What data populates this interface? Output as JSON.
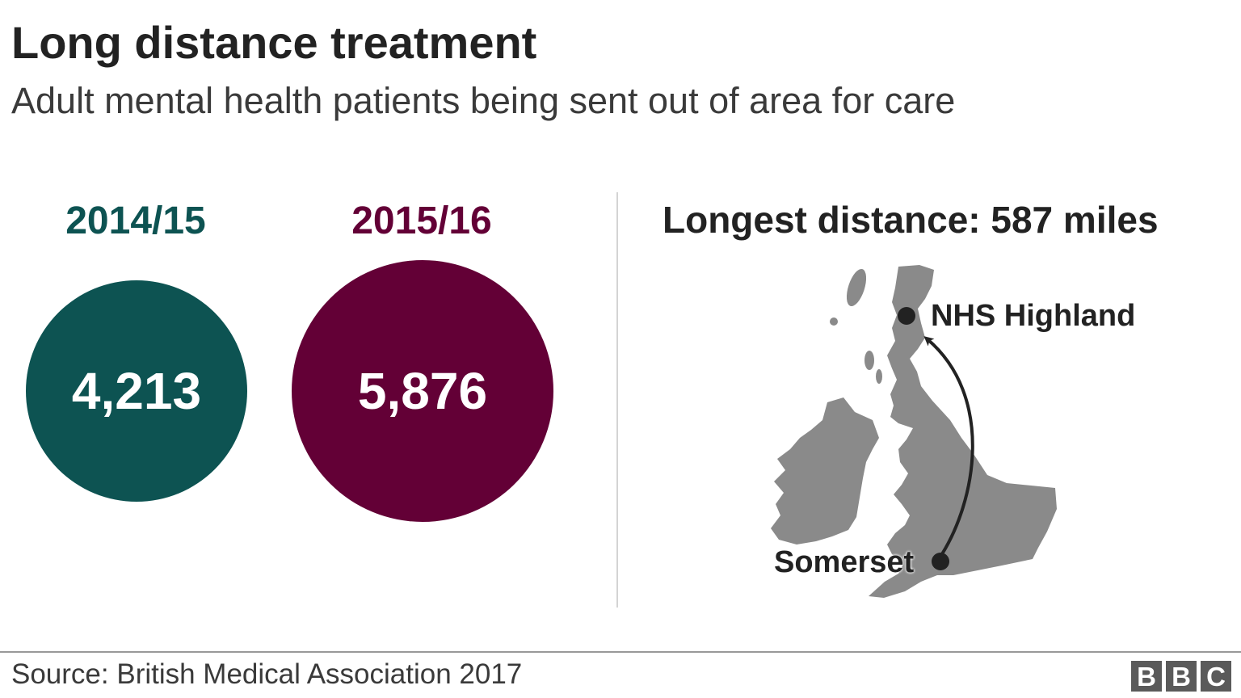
{
  "header": {
    "title": "Long distance treatment",
    "subtitle": "Adult mental health patients being sent out of area for care"
  },
  "chart_data": [
    {
      "type": "bubble",
      "categories": [
        "2014/15",
        "2015/16"
      ],
      "values": [
        4213,
        5876
      ],
      "value_labels": [
        "4,213",
        "5,876"
      ],
      "colors": [
        "#0d5352",
        "#630036"
      ]
    }
  ],
  "map_panel": {
    "title": "Longest distance: 587 miles",
    "origin_label": "Somerset",
    "destination_label": "NHS Highland",
    "land_color": "#8a8a8a",
    "marker_color": "#222222"
  },
  "footer": {
    "source": "Source: British Medical Association 2017",
    "logo_letters": [
      "B",
      "B",
      "C"
    ]
  }
}
